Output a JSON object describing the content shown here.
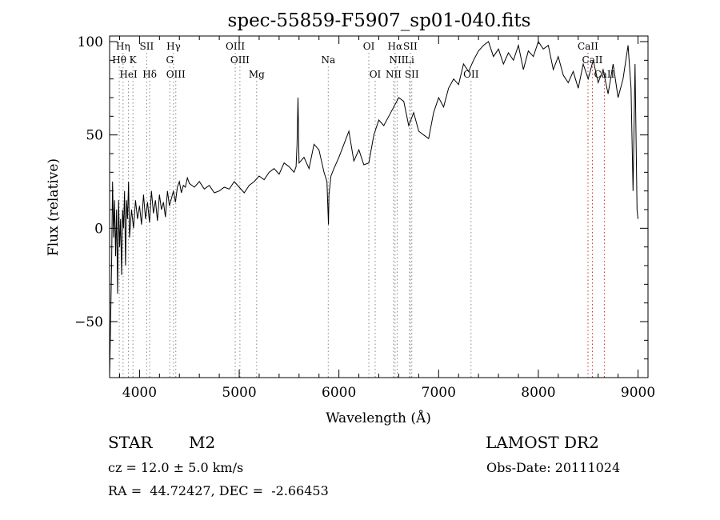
{
  "chart_data": {
    "type": "line",
    "title": "spec-55859-F5907_sp01-040.fits",
    "xlabel": "Wavelength (Å)",
    "ylabel": "Flux (relative)",
    "xlim": [
      3700,
      9100
    ],
    "ylim": [
      -80,
      103
    ],
    "xticks": [
      "4000",
      "5000",
      "6000",
      "7000",
      "8000",
      "9000"
    ],
    "yticks": [
      "−50",
      "0",
      "50",
      "100"
    ],
    "xtick_values": [
      4000,
      5000,
      6000,
      7000,
      8000,
      9000
    ],
    "ytick_values": [
      -50,
      0,
      50,
      100
    ],
    "series": [
      {
        "x": [
          3700,
          3720,
          3730,
          3740,
          3750,
          3760,
          3770,
          3780,
          3790,
          3800,
          3810,
          3820,
          3830,
          3840,
          3850,
          3860,
          3870,
          3880,
          3890,
          3900,
          3920,
          3940,
          3960,
          3980,
          4000,
          4020,
          4040,
          4060,
          4080,
          4100,
          4120,
          4140,
          4160,
          4180,
          4200,
          4220,
          4240,
          4260,
          4280,
          4300,
          4320,
          4340,
          4360,
          4380,
          4400,
          4420,
          4440,
          4460,
          4480,
          4500,
          4550,
          4600,
          4650,
          4700,
          4750,
          4800,
          4850,
          4900,
          4950,
          5000,
          5050,
          5100,
          5150,
          5200,
          5250,
          5300,
          5350,
          5400,
          5450,
          5500,
          5550,
          5570,
          5580,
          5590,
          5600,
          5650,
          5700,
          5750,
          5800,
          5850,
          5880,
          5890,
          5895,
          5900,
          5920,
          5950,
          6000,
          6050,
          6100,
          6150,
          6200,
          6250,
          6300,
          6350,
          6400,
          6450,
          6500,
          6550,
          6600,
          6650,
          6700,
          6750,
          6800,
          6850,
          6900,
          6950,
          7000,
          7050,
          7100,
          7150,
          7200,
          7250,
          7300,
          7350,
          7400,
          7450,
          7500,
          7550,
          7600,
          7650,
          7700,
          7750,
          7800,
          7850,
          7900,
          7950,
          8000,
          8050,
          8100,
          8150,
          8200,
          8250,
          8300,
          8350,
          8400,
          8450,
          8500,
          8550,
          8600,
          8650,
          8700,
          8750,
          8800,
          8850,
          8900,
          8930,
          8950,
          8970,
          8990,
          9000
        ],
        "y": [
          -80,
          -20,
          25,
          -5,
          15,
          -15,
          10,
          -35,
          15,
          -10,
          5,
          -25,
          10,
          0,
          20,
          -20,
          15,
          5,
          25,
          -5,
          10,
          0,
          15,
          5,
          12,
          2,
          18,
          5,
          14,
          3,
          20,
          8,
          15,
          4,
          18,
          10,
          14,
          6,
          20,
          12,
          16,
          20,
          14,
          22,
          25,
          19,
          23,
          22,
          27,
          24,
          22,
          25,
          21,
          23,
          19,
          20,
          22,
          21,
          25,
          22,
          19,
          23,
          25,
          28,
          26,
          30,
          32,
          29,
          35,
          33,
          30,
          33,
          45,
          70,
          35,
          38,
          32,
          45,
          42,
          30,
          25,
          10,
          2,
          18,
          28,
          32,
          38,
          45,
          52,
          36,
          42,
          34,
          35,
          50,
          58,
          55,
          60,
          65,
          70,
          68,
          55,
          62,
          52,
          50,
          48,
          62,
          70,
          65,
          75,
          80,
          77,
          88,
          84,
          90,
          95,
          98,
          100,
          92,
          96,
          88,
          94,
          90,
          98,
          85,
          95,
          92,
          100,
          96,
          98,
          85,
          92,
          82,
          78,
          84,
          75,
          88,
          80,
          90,
          78,
          85,
          72,
          88,
          70,
          80,
          98,
          75,
          20,
          88,
          10,
          5
        ]
      }
    ],
    "annotations": [
      {
        "label": "Hη",
        "x": 3835,
        "row": 1
      },
      {
        "label": "Hθ",
        "x": 3797,
        "row": 2
      },
      {
        "label": "HeI",
        "x": 3889,
        "row": 3
      },
      {
        "label": "K",
        "x": 3934,
        "row": 2
      },
      {
        "label": "SII",
        "x": 4072,
        "row": 1
      },
      {
        "label": "Hδ",
        "x": 4102,
        "row": 3
      },
      {
        "label": "Hγ",
        "x": 4341,
        "row": 1
      },
      {
        "label": "G",
        "x": 4304,
        "row": 2
      },
      {
        "label": "OIII",
        "x": 4364,
        "row": 3
      },
      {
        "label": "OIII",
        "x": 4960,
        "row": 1
      },
      {
        "label": "OIII",
        "x": 5007,
        "row": 2
      },
      {
        "label": "Mg",
        "x": 5175,
        "row": 3
      },
      {
        "label": "Na",
        "x": 5893,
        "row": 2
      },
      {
        "label": "OI",
        "x": 6300,
        "row": 1
      },
      {
        "label": "OI",
        "x": 6364,
        "row": 3
      },
      {
        "label": "Hα",
        "x": 6563,
        "row": 1
      },
      {
        "label": "SII",
        "x": 6716,
        "row": 1
      },
      {
        "label": "NII",
        "x": 6584,
        "row": 2
      },
      {
        "label": "Li",
        "x": 6708,
        "row": 2
      },
      {
        "label": "NII",
        "x": 6548,
        "row": 3
      },
      {
        "label": "SII",
        "x": 6731,
        "row": 3
      },
      {
        "label": "OII",
        "x": 7325,
        "row": 3
      },
      {
        "label": "CaII",
        "x": 8498,
        "row": 1
      },
      {
        "label": "CaII",
        "x": 8542,
        "row": 2
      },
      {
        "label": "CaII",
        "x": 8662,
        "row": 3
      }
    ]
  },
  "info": {
    "object_type": "STAR",
    "subclass": "M2",
    "survey": "LAMOST DR2",
    "cz": "cz = 12.0 ± 5.0 km/s",
    "obs_date": "Obs-Date: 20111024",
    "coords": "RA =  44.72427, DEC =  -2.66453"
  }
}
